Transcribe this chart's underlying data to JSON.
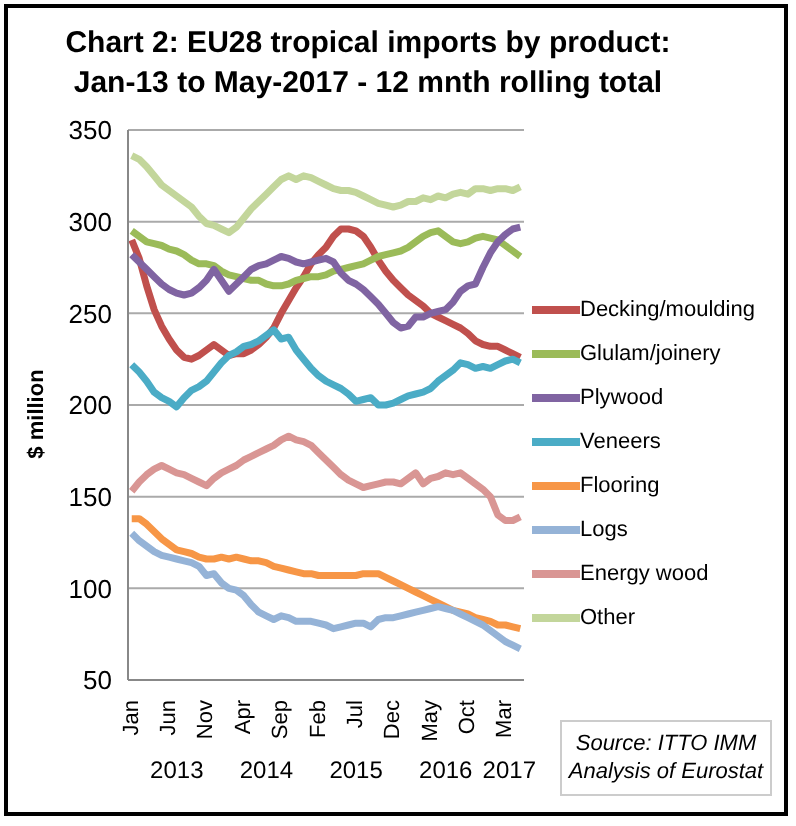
{
  "chart_data": {
    "type": "line",
    "title": "Chart 2: EU28 tropical imports by product: Jan-13 to May-2017 - 12 mnth rolling total",
    "ylabel": "$ million",
    "categories": [
      "Jan",
      null,
      null,
      null,
      null,
      "Jun",
      null,
      null,
      null,
      null,
      "Nov",
      null,
      null,
      null,
      null,
      "Apr",
      null,
      null,
      null,
      null,
      "Sep",
      null,
      null,
      null,
      null,
      "Feb",
      null,
      null,
      null,
      null,
      "Jul",
      null,
      null,
      null,
      null,
      "Dec",
      null,
      null,
      null,
      null,
      "May",
      null,
      null,
      null,
      null,
      "Oct",
      null,
      null,
      null,
      null,
      "Mar",
      null,
      null
    ],
    "series": [
      {
        "name": "Decking/moulding",
        "color": "#c0504d",
        "values": [
          290,
          280,
          265,
          252,
          243,
          236,
          230,
          226,
          225,
          227,
          230,
          233,
          230,
          227,
          228,
          228,
          230,
          233,
          237,
          242,
          250,
          257,
          264,
          270,
          277,
          282,
          286,
          292,
          296,
          296,
          295,
          292,
          286,
          279,
          273,
          268,
          264,
          260,
          257,
          254,
          250,
          248,
          246,
          244,
          242,
          239,
          235,
          233,
          232,
          232,
          230,
          228,
          226
        ]
      },
      {
        "name": "Glulam/joinery",
        "color": "#9bbb59",
        "values": [
          295,
          292,
          289,
          288,
          287,
          285,
          284,
          282,
          279,
          277,
          277,
          276,
          273,
          271,
          270,
          269,
          268,
          268,
          266,
          265,
          265,
          266,
          268,
          269,
          270,
          270,
          271,
          273,
          274,
          275,
          276,
          277,
          279,
          281,
          282,
          283,
          284,
          286,
          289,
          292,
          294,
          295,
          292,
          289,
          288,
          289,
          291,
          292,
          291,
          290,
          287,
          284,
          281
        ]
      },
      {
        "name": "Plywood",
        "color": "#8064a2",
        "values": [
          282,
          278,
          274,
          270,
          266,
          263,
          261,
          260,
          261,
          264,
          268,
          274,
          268,
          262,
          266,
          270,
          274,
          276,
          277,
          279,
          281,
          280,
          278,
          277,
          278,
          279,
          280,
          278,
          272,
          268,
          266,
          263,
          259,
          255,
          250,
          245,
          242,
          243,
          248,
          248,
          250,
          251,
          252,
          256,
          262,
          265,
          266,
          275,
          283,
          289,
          293,
          296,
          297
        ]
      },
      {
        "name": "Veneers",
        "color": "#4bacc6",
        "values": [
          222,
          218,
          213,
          207,
          204,
          202,
          199,
          204,
          208,
          210,
          213,
          218,
          223,
          227,
          229,
          232,
          233,
          235,
          238,
          241,
          236,
          237,
          230,
          225,
          220,
          216,
          213,
          211,
          209,
          206,
          202,
          203,
          204,
          200,
          200,
          201,
          203,
          205,
          206,
          207,
          209,
          213,
          216,
          219,
          223,
          222,
          220,
          221,
          220,
          222,
          224,
          225,
          223
        ]
      },
      {
        "name": "Flooring",
        "color": "#f79646",
        "values": [
          138,
          138,
          135,
          131,
          127,
          124,
          121,
          120,
          119,
          117,
          116,
          116,
          117,
          116,
          117,
          116,
          115,
          115,
          114,
          112,
          111,
          110,
          109,
          108,
          108,
          107,
          107,
          107,
          107,
          107,
          107,
          108,
          108,
          108,
          106,
          104,
          102,
          100,
          98,
          96,
          94,
          92,
          90,
          88,
          87,
          86,
          84,
          83,
          82,
          80,
          80,
          79,
          78
        ]
      },
      {
        "name": "Logs",
        "color": "#95b3d7",
        "values": [
          130,
          126,
          123,
          120,
          118,
          117,
          116,
          115,
          114,
          112,
          107,
          108,
          103,
          100,
          99,
          96,
          91,
          87,
          85,
          83,
          85,
          84,
          82,
          82,
          82,
          81,
          80,
          78,
          79,
          80,
          81,
          81,
          79,
          83,
          84,
          84,
          85,
          86,
          87,
          88,
          89,
          90,
          89,
          88,
          86,
          84,
          82,
          80,
          77,
          74,
          71,
          69,
          67
        ]
      },
      {
        "name": "Energy wood",
        "color": "#d99694",
        "values": [
          153,
          158,
          162,
          165,
          167,
          165,
          163,
          162,
          160,
          158,
          156,
          160,
          163,
          165,
          167,
          170,
          172,
          174,
          176,
          178,
          181,
          183,
          181,
          180,
          178,
          174,
          170,
          166,
          162,
          159,
          157,
          155,
          156,
          157,
          158,
          158,
          157,
          160,
          163,
          157,
          160,
          161,
          163,
          162,
          163,
          160,
          157,
          154,
          150,
          140,
          137,
          137,
          139
        ]
      },
      {
        "name": "Other",
        "color": "#c3d69b",
        "values": [
          336,
          334,
          330,
          325,
          320,
          317,
          314,
          311,
          308,
          303,
          299,
          298,
          296,
          294,
          297,
          302,
          307,
          311,
          315,
          319,
          323,
          325,
          323,
          325,
          324,
          322,
          320,
          318,
          317,
          317,
          316,
          314,
          312,
          310,
          309,
          308,
          309,
          311,
          311,
          313,
          312,
          314,
          313,
          315,
          316,
          315,
          318,
          318,
          317,
          318,
          318,
          317,
          319
        ]
      }
    ],
    "ylim": [
      50,
      350
    ],
    "yticks": [
      50,
      100,
      150,
      200,
      250,
      300,
      350
    ],
    "grid": "y",
    "legend": "right",
    "marker": "none",
    "line_style": "solid",
    "annotations": [
      "2013",
      "2014",
      "2015",
      "2016",
      "2017",
      "Source: ITTO IMM Analysis of Eurostat"
    ]
  }
}
